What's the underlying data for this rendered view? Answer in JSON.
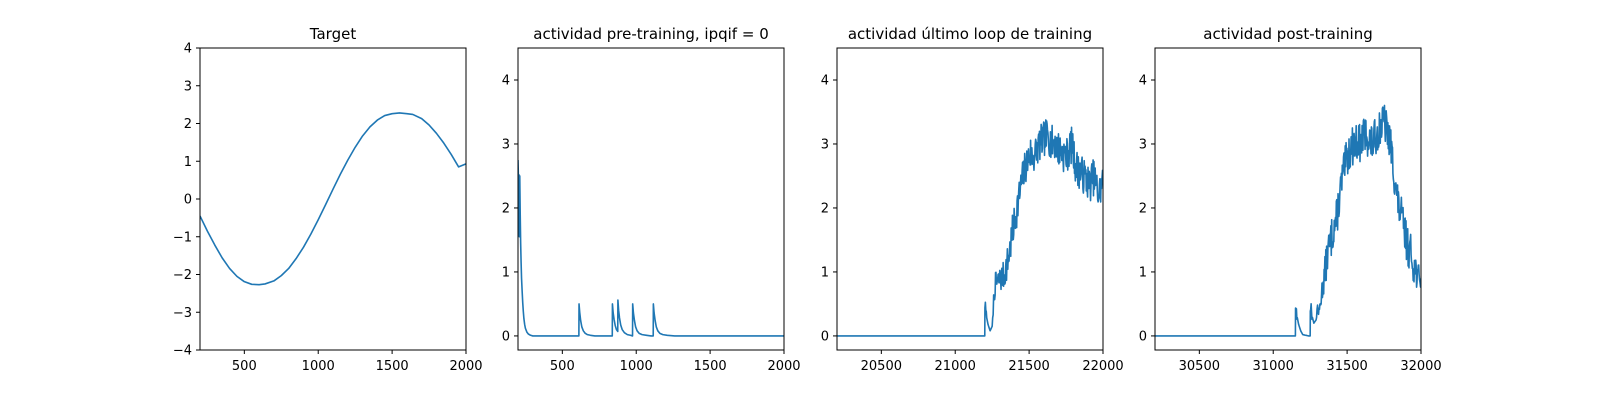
{
  "chart_data": [
    {
      "type": "line",
      "title": "Target",
      "xlim": [
        200,
        2000
      ],
      "ylim": [
        -4,
        4
      ],
      "xticks": [
        500,
        1000,
        1500,
        2000
      ],
      "yticks": [
        -4,
        -3,
        -2,
        -1,
        0,
        1,
        2,
        3,
        4
      ],
      "xtick_labels": [
        "500",
        "1000",
        "1500",
        "2000"
      ],
      "ytick_labels": [
        "−4",
        "−3",
        "−2",
        "−1",
        "0",
        "1",
        "2",
        "3",
        "4"
      ],
      "series": [
        {
          "color": "#1f77b4",
          "x": [
            200,
            250,
            300,
            350,
            400,
            450,
            500,
            550,
            600,
            640,
            700,
            750,
            800,
            850,
            900,
            950,
            1000,
            1050,
            1100,
            1150,
            1200,
            1250,
            1300,
            1350,
            1400,
            1450,
            1500,
            1550,
            1600,
            1640,
            1700,
            1750,
            1800,
            1850,
            1900,
            1950,
            2000
          ],
          "y": [
            -0.45,
            -0.85,
            -1.22,
            -1.56,
            -1.84,
            -2.05,
            -2.19,
            -2.26,
            -2.27,
            -2.25,
            -2.17,
            -2.03,
            -1.84,
            -1.58,
            -1.28,
            -0.93,
            -0.55,
            -0.15,
            0.26,
            0.66,
            1.03,
            1.37,
            1.67,
            1.91,
            2.09,
            2.21,
            2.26,
            2.28,
            2.26,
            2.24,
            2.13,
            1.96,
            1.74,
            1.48,
            1.18,
            0.85,
            0.93
          ]
        }
      ]
    },
    {
      "type": "line",
      "title": "actividad pre-training, ipqif = 0",
      "xlim": [
        200,
        2000
      ],
      "ylim": [
        -0.22,
        4.5
      ],
      "xticks": [
        500,
        1000,
        1500,
        2000
      ],
      "yticks": [
        0,
        1,
        2,
        3,
        4
      ],
      "xtick_labels": [
        "500",
        "1000",
        "1500",
        "2000"
      ],
      "ytick_labels": [
        "0",
        "1",
        "2",
        "3",
        "4"
      ],
      "series": [
        {
          "color": "#1f77b4",
          "x": [
            200,
            203,
            206,
            209,
            212,
            215,
            218,
            221,
            224,
            228,
            232,
            236,
            240,
            245,
            250,
            260,
            270,
            285,
            300,
            350,
            400,
            450,
            500,
            550,
            600,
            612,
            613,
            618,
            624,
            632,
            642,
            655,
            670,
            690,
            720,
            780,
            838,
            839,
            844,
            850,
            858,
            866,
            875,
            876,
            881,
            887,
            895,
            905,
            920,
            940,
            960,
            975,
            976,
            981,
            988,
            996,
            1006,
            1020,
            1040,
            1070,
            1100,
            1115,
            1116,
            1121,
            1128,
            1136,
            1146,
            1160,
            1180,
            1210,
            1260,
            1350,
            1500,
            1700,
            1900,
            2000
          ],
          "y": [
            2.75,
            2.45,
            2.52,
            1.55,
            2.5,
            1.9,
            1.45,
            1.15,
            0.9,
            0.7,
            0.52,
            0.38,
            0.27,
            0.18,
            0.12,
            0.06,
            0.03,
            0.01,
            0,
            0,
            0,
            0,
            0,
            0,
            0,
            0,
            0.5,
            0.36,
            0.24,
            0.14,
            0.08,
            0.04,
            0.02,
            0.01,
            0,
            0,
            0,
            0.5,
            0.36,
            0.26,
            0.16,
            0.1,
            0.07,
            0.56,
            0.4,
            0.28,
            0.17,
            0.1,
            0.05,
            0.02,
            0.01,
            0,
            0.5,
            0.36,
            0.24,
            0.14,
            0.08,
            0.04,
            0.02,
            0.01,
            0,
            0,
            0.5,
            0.36,
            0.24,
            0.14,
            0.08,
            0.04,
            0.02,
            0.01,
            0,
            0,
            0,
            0,
            0,
            0
          ]
        }
      ]
    },
    {
      "type": "line",
      "title": "actividad último loop de training",
      "xlim": [
        20200,
        22000
      ],
      "ylim": [
        -0.22,
        4.5
      ],
      "xticks": [
        20500,
        21000,
        21500,
        22000
      ],
      "yticks": [
        0,
        1,
        2,
        3,
        4
      ],
      "xtick_labels": [
        "20500",
        "21000",
        "21500",
        "22000"
      ],
      "ytick_labels": [
        "0",
        "1",
        "2",
        "3",
        "4"
      ],
      "noise_seed": 7,
      "noise_amplitude": 0.28,
      "series": [
        {
          "color": "#1f77b4",
          "x": [
            20200,
            20600,
            21000,
            21190,
            21200,
            21201,
            21210,
            21222,
            21236,
            21250,
            21260,
            21270,
            21290,
            21310,
            21330,
            21350,
            21370,
            21390,
            21410,
            21430,
            21450,
            21470,
            21490,
            21510,
            21530,
            21550,
            21570,
            21590,
            21610,
            21630,
            21650,
            21670,
            21690,
            21710,
            21730,
            21750,
            21770,
            21790,
            21810,
            21830,
            21850,
            21870,
            21890,
            21910,
            21930,
            21950,
            21970,
            21990,
            22000
          ],
          "y": [
            0,
            0,
            0,
            0,
            0,
            0.5,
            0.32,
            0.18,
            0.08,
            0.15,
            0.55,
            0.8,
            0.85,
            0.9,
            0.95,
            1.1,
            1.35,
            1.65,
            1.9,
            2.15,
            2.4,
            2.6,
            2.75,
            2.85,
            2.8,
            2.9,
            3.0,
            3.05,
            3.1,
            3.15,
            3.0,
            3.05,
            2.95,
            2.9,
            2.85,
            2.8,
            2.9,
            3.0,
            2.7,
            2.6,
            2.55,
            2.5,
            2.45,
            2.35,
            2.5,
            2.4,
            2.2,
            2.35,
            2.45
          ]
        }
      ]
    },
    {
      "type": "line",
      "title": "actividad post-training",
      "xlim": [
        30200,
        32000
      ],
      "ylim": [
        -0.22,
        4.5
      ],
      "xticks": [
        30500,
        31000,
        31500,
        32000
      ],
      "yticks": [
        0,
        1,
        2,
        3,
        4
      ],
      "xtick_labels": [
        "30500",
        "31000",
        "31500",
        "32000"
      ],
      "ytick_labels": [
        "0",
        "1",
        "2",
        "3",
        "4"
      ],
      "noise_seed": 13,
      "noise_amplitude": 0.3,
      "series": [
        {
          "color": "#1f77b4",
          "x": [
            30200,
            30600,
            31000,
            31140,
            31150,
            31151,
            31160,
            31172,
            31186,
            31200,
            31240,
            31250,
            31251,
            31262,
            31275,
            31290,
            31300,
            31310,
            31330,
            31350,
            31370,
            31390,
            31410,
            31430,
            31450,
            31470,
            31490,
            31510,
            31530,
            31550,
            31570,
            31590,
            31610,
            31630,
            31650,
            31670,
            31690,
            31710,
            31730,
            31750,
            31770,
            31790,
            31810,
            31830,
            31850,
            31870,
            31890,
            31910,
            31930,
            31950,
            31970,
            31990,
            32000
          ],
          "y": [
            0,
            0,
            0,
            0,
            0,
            0.5,
            0.32,
            0.18,
            0.08,
            0.02,
            0,
            0,
            0.5,
            0.32,
            0.2,
            0.25,
            0.45,
            0.35,
            0.7,
            1.0,
            1.3,
            1.5,
            1.7,
            1.85,
            2.2,
            2.5,
            2.7,
            2.85,
            2.95,
            3.0,
            3.05,
            3.0,
            3.1,
            3.15,
            3.05,
            3.0,
            3.1,
            3.2,
            3.3,
            3.35,
            3.2,
            3.05,
            2.7,
            2.3,
            2.0,
            1.85,
            1.6,
            1.4,
            1.3,
            1.1,
            1.0,
            0.85,
            0.9
          ]
        }
      ]
    }
  ]
}
